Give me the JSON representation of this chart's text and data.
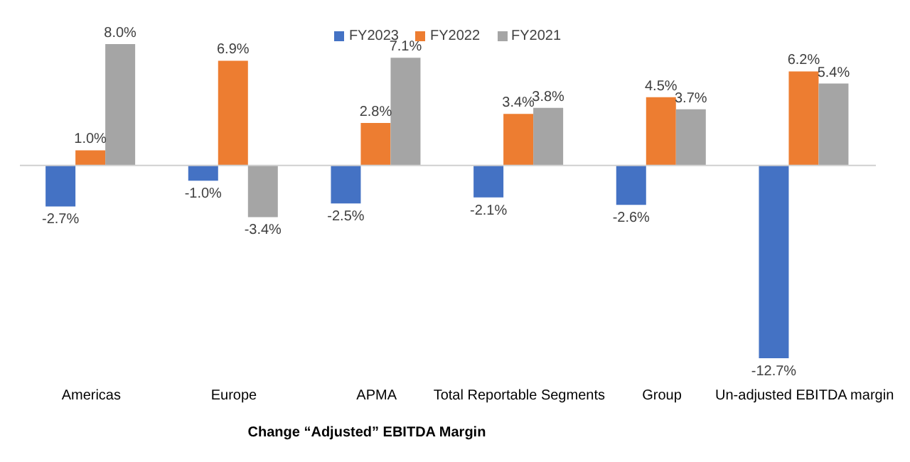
{
  "chart_data": {
    "type": "bar",
    "xlabel": "Change “Adjusted” EBITDA Margin",
    "categories": [
      "Americas",
      "Europe",
      "APMA",
      "Total Reportable Segments",
      "Group",
      "Un-adjusted EBITDA margin"
    ],
    "legend": "top",
    "grid": false,
    "series": [
      {
        "name": "FY2023",
        "color": "#4472c4",
        "values": [
          -2.7,
          -1.0,
          -2.5,
          -2.1,
          -2.6,
          -12.7
        ],
        "value_labels": [
          "-2.7%",
          "-1.0%",
          "-2.5%",
          "-2.1%",
          "-2.6%",
          "-12.7%"
        ]
      },
      {
        "name": "FY2022",
        "color": "#ed7d31",
        "values": [
          1.0,
          6.9,
          2.8,
          3.4,
          4.5,
          6.2
        ],
        "value_labels": [
          "1.0%",
          "6.9%",
          "2.8%",
          "3.4%",
          "4.5%",
          "6.2%"
        ]
      },
      {
        "name": "FY2021",
        "color": "#a5a5a5",
        "values": [
          8.0,
          -3.4,
          7.1,
          3.8,
          3.7,
          5.4
        ],
        "value_labels": [
          "8.0%",
          "-3.4%",
          "7.1%",
          "3.8%",
          "3.7%",
          "5.4%"
        ]
      }
    ]
  }
}
